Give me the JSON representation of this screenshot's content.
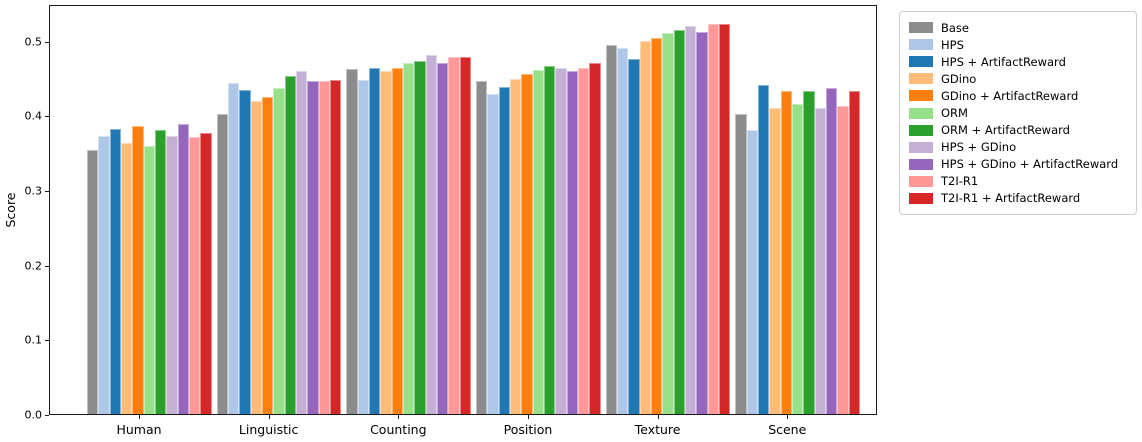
{
  "chart_data": {
    "type": "bar",
    "title": "",
    "xlabel": "",
    "ylabel": "Score",
    "categories": [
      "Human",
      "Linguistic",
      "Counting",
      "Position",
      "Texture",
      "Scene"
    ],
    "series": [
      {
        "name": "Base",
        "color": "#8c8c8c",
        "values": [
          0.353,
          0.402,
          0.462,
          0.446,
          0.494,
          0.402
        ]
      },
      {
        "name": "HPS",
        "color": "#aec7e8",
        "values": [
          0.373,
          0.443,
          0.448,
          0.429,
          0.49,
          0.381
        ]
      },
      {
        "name": "HPS + ArtifactReward",
        "color": "#1f77b4",
        "values": [
          0.382,
          0.434,
          0.464,
          0.438,
          0.476,
          0.441
        ]
      },
      {
        "name": "GDino",
        "color": "#ffbb78",
        "values": [
          0.363,
          0.419,
          0.459,
          0.449,
          0.5,
          0.41
        ]
      },
      {
        "name": "GDino + ArtifactReward",
        "color": "#ff7f0e",
        "values": [
          0.386,
          0.425,
          0.463,
          0.455,
          0.503,
          0.433
        ]
      },
      {
        "name": "ORM",
        "color": "#98df8a",
        "values": [
          0.359,
          0.437,
          0.47,
          0.461,
          0.511,
          0.415
        ]
      },
      {
        "name": "ORM + ArtifactReward",
        "color": "#2ca02c",
        "values": [
          0.381,
          0.453,
          0.473,
          0.466,
          0.514,
          0.432
        ]
      },
      {
        "name": "HPS + GDino",
        "color": "#c5b0d5",
        "values": [
          0.372,
          0.459,
          0.481,
          0.464,
          0.52,
          0.41
        ]
      },
      {
        "name": "HPS + GDino + ArtifactReward",
        "color": "#9467bd",
        "values": [
          0.388,
          0.446,
          0.47,
          0.459,
          0.512,
          0.436
        ]
      },
      {
        "name": "T2I-R1",
        "color": "#ff9896",
        "values": [
          0.371,
          0.446,
          0.478,
          0.463,
          0.522,
          0.413
        ]
      },
      {
        "name": "T2I-R1 + ArtifactReward",
        "color": "#d62728",
        "values": [
          0.376,
          0.448,
          0.478,
          0.47,
          0.523,
          0.432
        ]
      }
    ],
    "ylim": [
      0,
      0.55
    ],
    "yticks": [
      "0.0",
      "0.1",
      "0.2",
      "0.3",
      "0.4",
      "0.5"
    ],
    "grid": false,
    "legend_position": "outside-right"
  }
}
